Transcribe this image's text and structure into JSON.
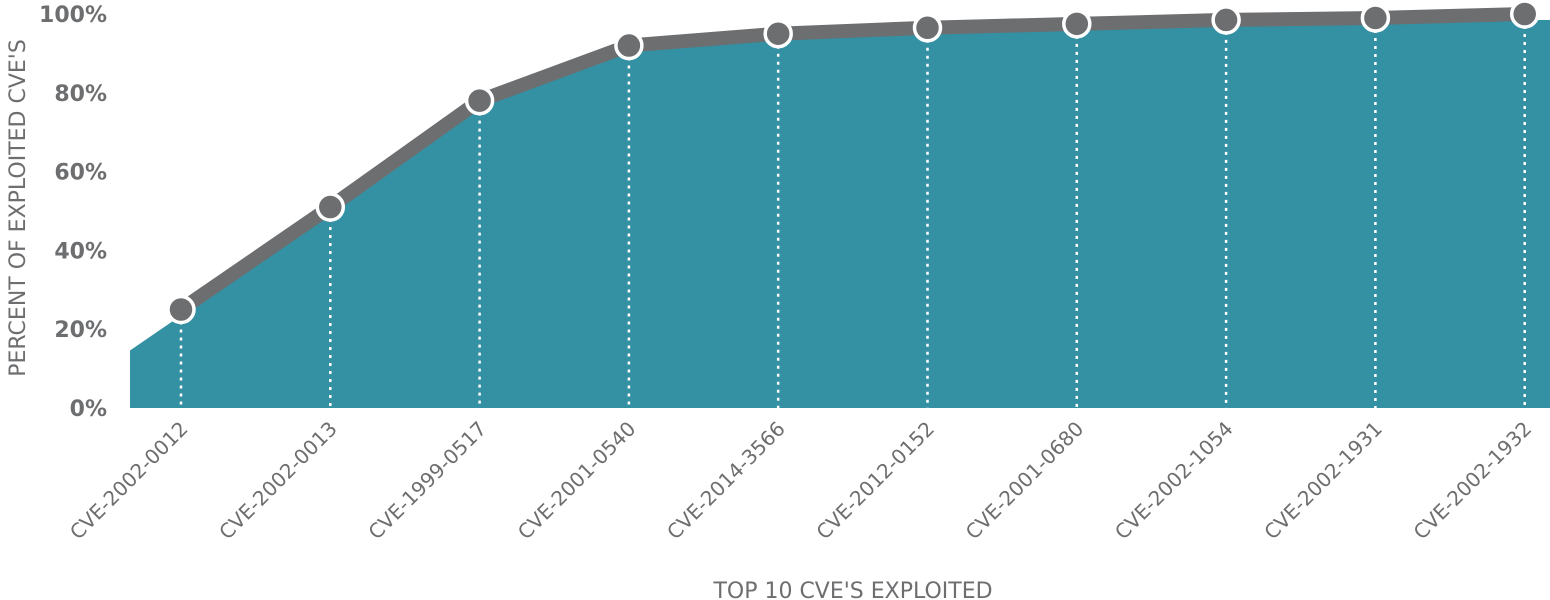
{
  "chart_data": {
    "type": "area",
    "title": "",
    "xlabel": "TOP 10 CVE'S EXPLOITED",
    "ylabel": "PERCENT OF EXPLOITED CVE'S",
    "categories": [
      "CVE-2002-0012",
      "CVE-2002-0013",
      "CVE-1999-0517",
      "CVE-2001-0540",
      "CVE-2014-3566",
      "CVE-2012-0152",
      "CVE-2001-0680",
      "CVE-2002-1054",
      "CVE-2002-1931",
      "CVE-2002-1932"
    ],
    "values": [
      25,
      51,
      78,
      92,
      95,
      96.5,
      97.5,
      98.5,
      99,
      100
    ],
    "ylim": [
      0,
      100
    ],
    "yticks": [
      "0%",
      "20%",
      "40%",
      "60%",
      "80%",
      "100%"
    ],
    "grid": false,
    "colors": {
      "area": "#3490a3",
      "line": "#6d6e70",
      "marker": "#6d6e70",
      "marker_edge": "#ffffff",
      "guide": "#ffffff"
    }
  }
}
